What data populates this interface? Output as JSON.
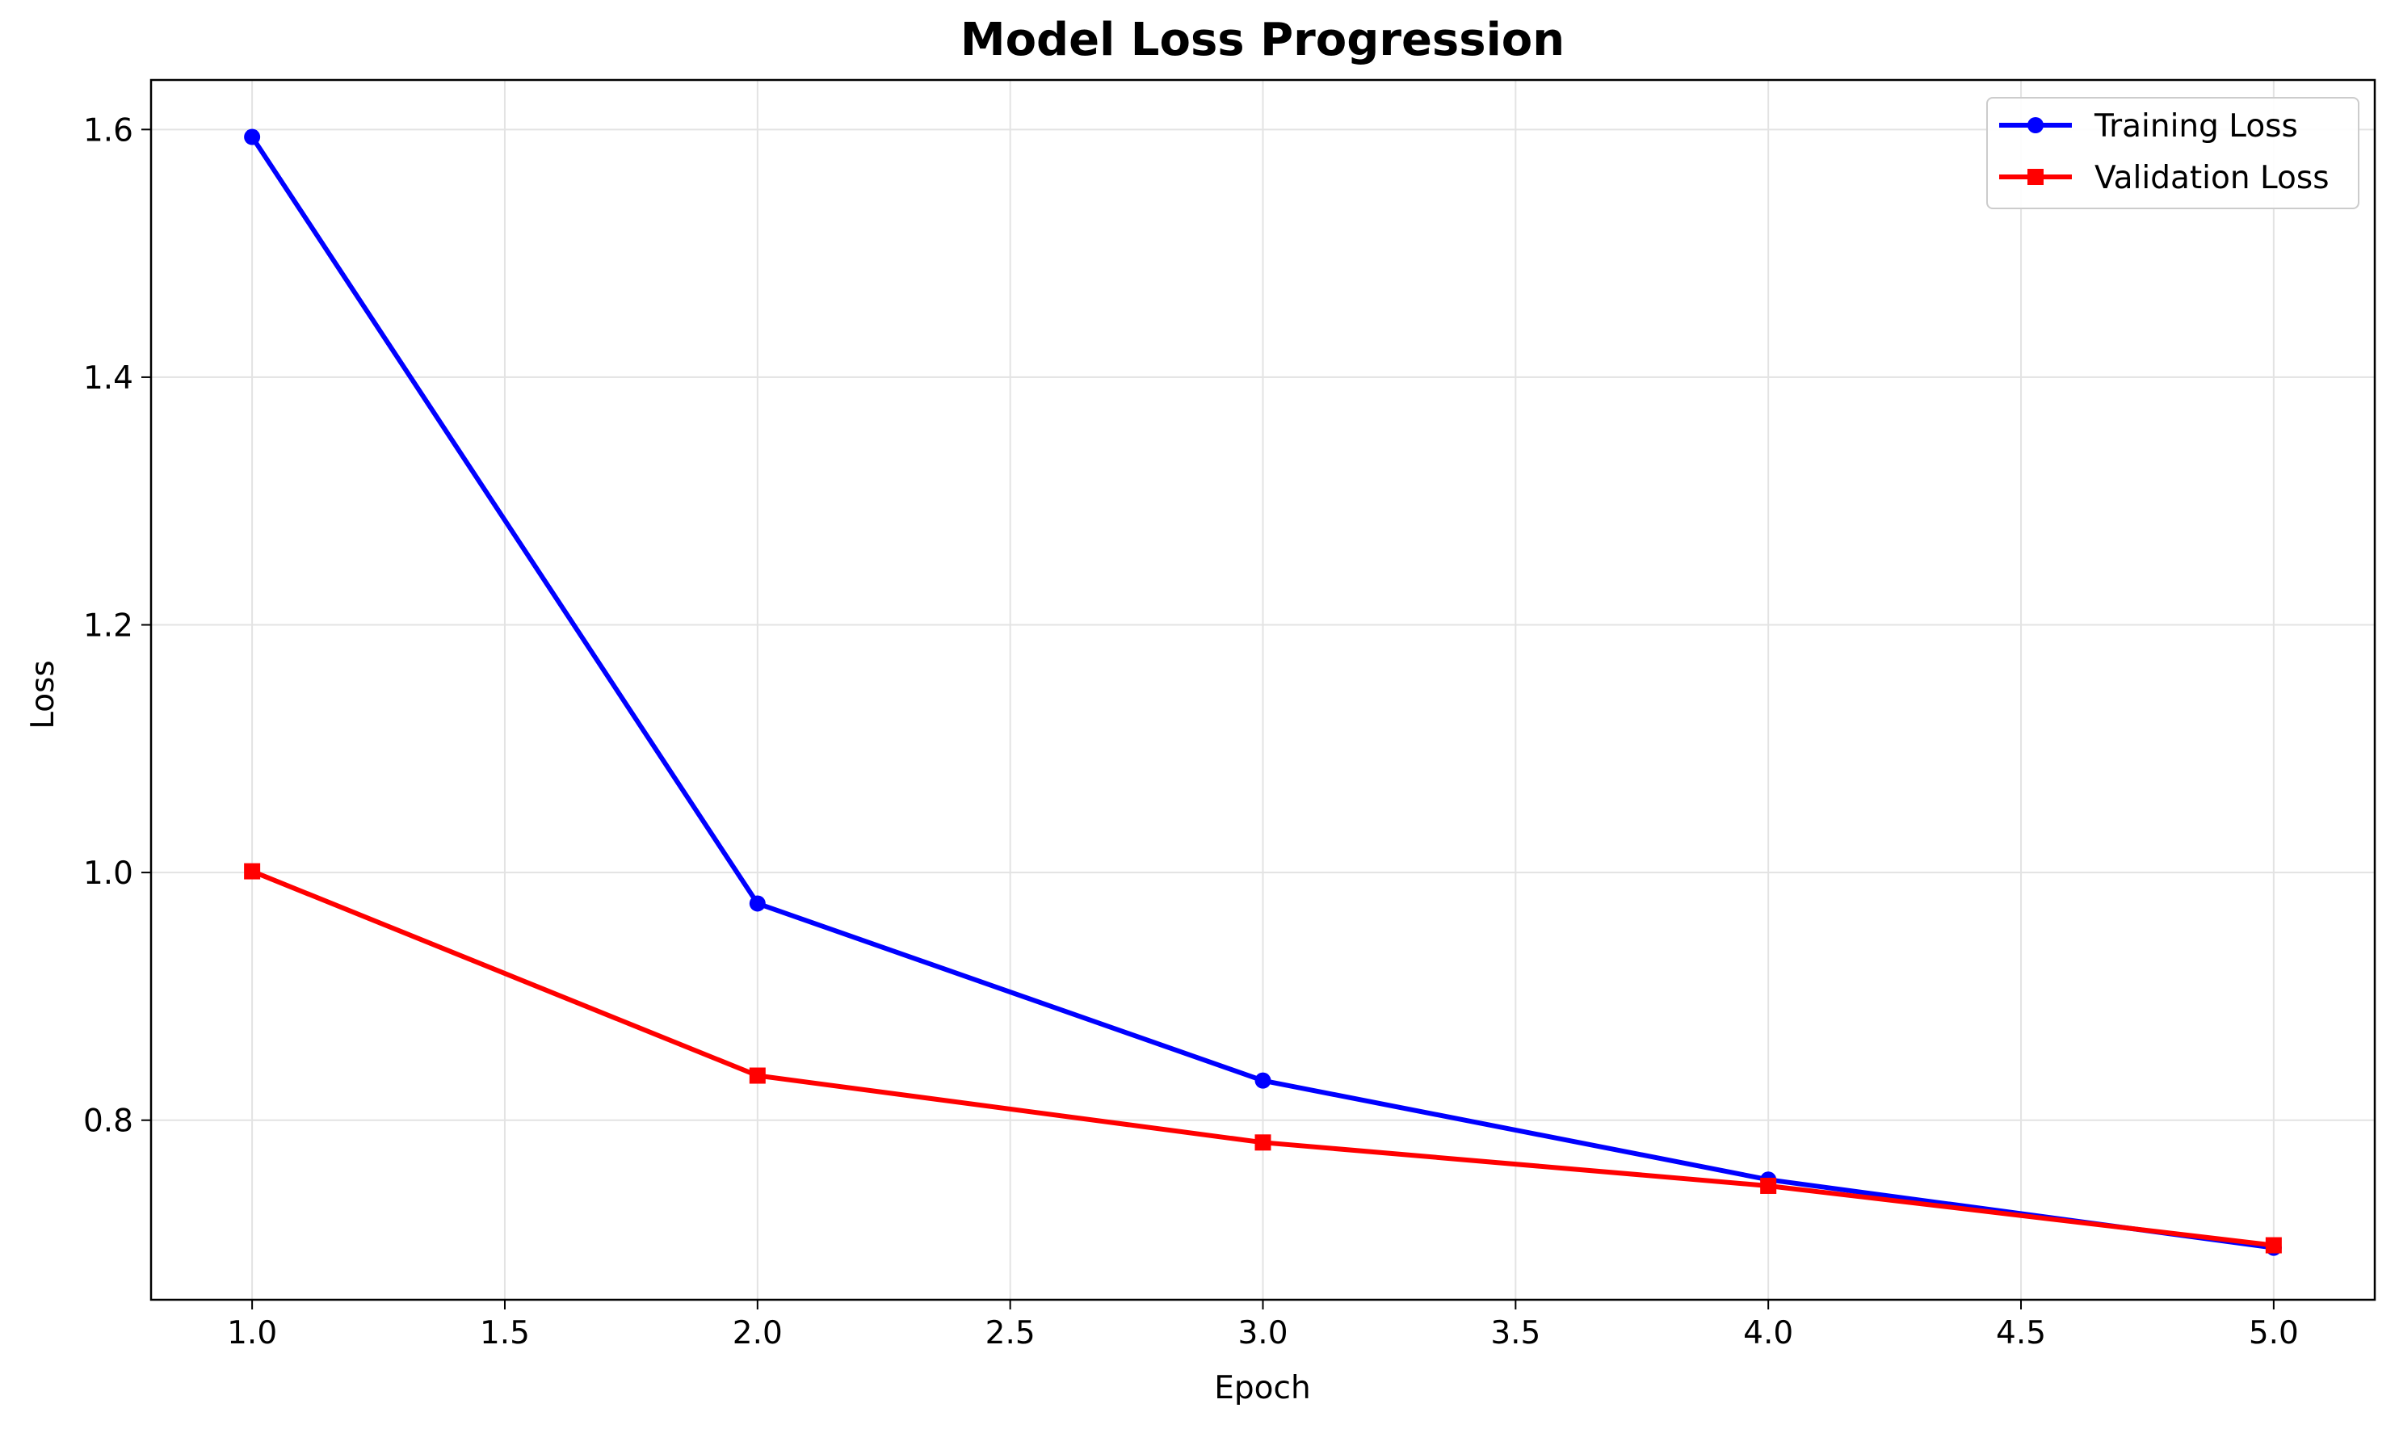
{
  "chart_data": {
    "type": "line",
    "title": "Model Loss Progression",
    "xlabel": "Epoch",
    "ylabel": "Loss",
    "xlim": [
      0.8,
      5.2
    ],
    "ylim": [
      0.655,
      1.64
    ],
    "xticks": [
      1.0,
      1.5,
      2.0,
      2.5,
      3.0,
      3.5,
      4.0,
      4.5,
      5.0
    ],
    "xtick_labels": [
      "1.0",
      "1.5",
      "2.0",
      "2.5",
      "3.0",
      "3.5",
      "4.0",
      "4.5",
      "5.0"
    ],
    "yticks": [
      0.8,
      1.0,
      1.2,
      1.4,
      1.6
    ],
    "ytick_labels": [
      "0.8",
      "1.0",
      "1.2",
      "1.4",
      "1.6"
    ],
    "grid": true,
    "legend_position": "top-right",
    "x": [
      1,
      2,
      3,
      4,
      5
    ],
    "series": [
      {
        "name": "Training Loss",
        "color": "#0000ff",
        "marker": "circle",
        "values": [
          1.594,
          0.975,
          0.832,
          0.752,
          0.697
        ]
      },
      {
        "name": "Validation Loss",
        "color": "#ff0000",
        "marker": "square",
        "values": [
          1.001,
          0.836,
          0.782,
          0.747,
          0.699
        ]
      }
    ]
  }
}
